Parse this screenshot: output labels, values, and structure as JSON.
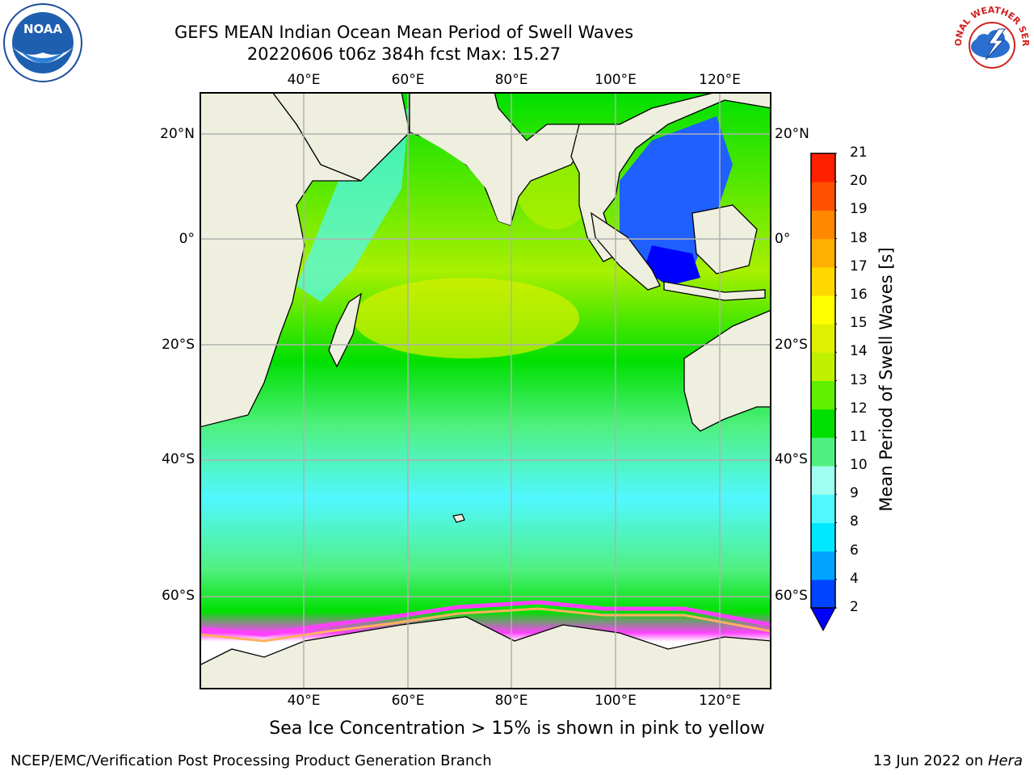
{
  "title": {
    "line1": "GEFS MEAN Indian Ocean Mean Period of Swell Waves",
    "line2": "20220606 t06z 384h fcst   Max: 15.27"
  },
  "map": {
    "lon_ticks": [
      "40°E",
      "60°E",
      "80°E",
      "100°E",
      "120°E"
    ],
    "lat_ticks": [
      "20°N",
      "0°",
      "20°S",
      "40°S",
      "60°S"
    ],
    "lon_range": [
      20,
      130
    ],
    "lat_range": [
      -71,
      28
    ]
  },
  "colorbar": {
    "label": "Mean Period of Swell Waves [s]",
    "ticks": [
      "2",
      "4",
      "6",
      "8",
      "9",
      "10",
      "11",
      "12",
      "13",
      "14",
      "15",
      "16",
      "17",
      "18",
      "19",
      "20",
      "21"
    ],
    "colors": [
      "#0044ff",
      "#00a4ff",
      "#00e8ff",
      "#50f8ff",
      "#a0fff0",
      "#50f080",
      "#00e000",
      "#60f000",
      "#c0f000",
      "#e0f000",
      "#ffff00",
      "#ffd800",
      "#ffb000",
      "#ff8800",
      "#ff5000",
      "#ff2000"
    ],
    "extend_color": "#0000ff"
  },
  "annotation": "Sea Ice Concentration > 15% is shown in pink to yellow",
  "footer": {
    "left": "NCEP/EMC/Verification Post Processing Product Generation Branch",
    "date": "13 Jun 2022 on ",
    "host": "Hera"
  },
  "logos": {
    "noaa": "NOAA",
    "nws": "NATIONAL WEATHER SERVICE"
  }
}
